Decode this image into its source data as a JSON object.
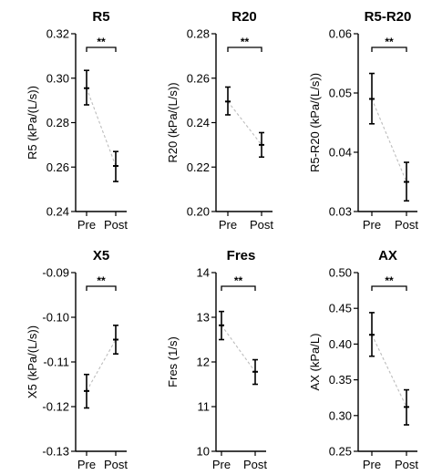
{
  "chart_data": [
    {
      "type": "scatter",
      "title": "R5",
      "ylabel": "R5 (kPa/(L/s))",
      "categories": [
        "Pre",
        "Post"
      ],
      "yticks": [
        "0.24",
        "0.26",
        "0.28",
        "0.30",
        "0.32"
      ],
      "ylim": [
        0.24,
        0.32
      ],
      "mean": [
        0.2955,
        0.2605
      ],
      "err_low": [
        0.288,
        0.2535
      ],
      "err_high": [
        0.3035,
        0.267
      ],
      "significance": "**"
    },
    {
      "type": "scatter",
      "title": "R20",
      "ylabel": "R20 (kPa/(L/s))",
      "categories": [
        "Pre",
        "Post"
      ],
      "yticks": [
        "0.20",
        "0.22",
        "0.24",
        "0.26",
        "0.28"
      ],
      "ylim": [
        0.2,
        0.28
      ],
      "mean": [
        0.2495,
        0.23
      ],
      "err_low": [
        0.2435,
        0.2245
      ],
      "err_high": [
        0.256,
        0.2355
      ],
      "significance": "**"
    },
    {
      "type": "scatter",
      "title": "R5-R20",
      "ylabel": "R5-R20 (kPa/(L/s))",
      "categories": [
        "Pre",
        "Post"
      ],
      "yticks": [
        "0.03",
        "0.04",
        "0.05",
        "0.06"
      ],
      "ylim": [
        0.03,
        0.06
      ],
      "mean": [
        0.049,
        0.035
      ],
      "err_low": [
        0.0448,
        0.0318
      ],
      "err_high": [
        0.0533,
        0.0383
      ],
      "significance": "**"
    },
    {
      "type": "scatter",
      "title": "X5",
      "ylabel": "X5 (kPa/(L/s))",
      "categories": [
        "Pre",
        "Post"
      ],
      "yticks": [
        "-0.13",
        "-0.12",
        "-0.11",
        "-0.10",
        "-0.09"
      ],
      "ylim": [
        -0.13,
        -0.09
      ],
      "mean": [
        -0.1165,
        -0.105
      ],
      "err_low": [
        -0.1203,
        -0.1082
      ],
      "err_high": [
        -0.1128,
        -0.1018
      ],
      "significance": "**"
    },
    {
      "type": "scatter",
      "title": "Fres",
      "ylabel": "Fres (1/s)",
      "categories": [
        "Pre",
        "Post"
      ],
      "yticks": [
        "10",
        "11",
        "12",
        "13",
        "14"
      ],
      "ylim": [
        10,
        14
      ],
      "mean": [
        12.82,
        11.78
      ],
      "err_low": [
        12.5,
        11.5
      ],
      "err_high": [
        13.13,
        12.05
      ],
      "significance": "**"
    },
    {
      "type": "scatter",
      "title": "AX",
      "ylabel": "AX (kPa/L)",
      "categories": [
        "Pre",
        "Post"
      ],
      "yticks": [
        "0.25",
        "0.30",
        "0.35",
        "0.40",
        "0.45",
        "0.50"
      ],
      "ylim": [
        0.25,
        0.5
      ],
      "mean": [
        0.413,
        0.312
      ],
      "err_low": [
        0.383,
        0.287
      ],
      "err_high": [
        0.444,
        0.336
      ],
      "significance": "**"
    }
  ]
}
